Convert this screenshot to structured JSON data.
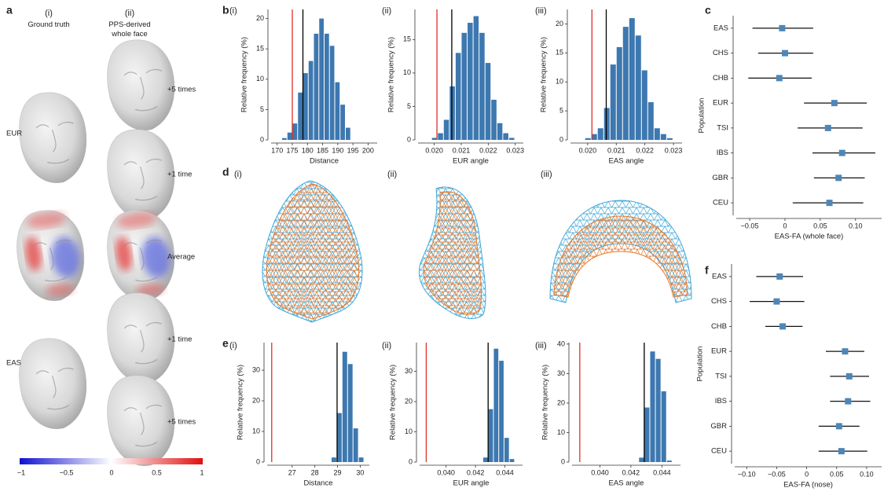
{
  "panel_letters": [
    "a",
    "b",
    "c",
    "d",
    "e",
    "f"
  ],
  "panel_a": {
    "columns": [
      {
        "label": "(i)",
        "title": "Ground truth"
      },
      {
        "label": "(ii)",
        "title": "PPS-derived whole face"
      }
    ],
    "row_labels": [
      "+5 times",
      "+1 time",
      "Average",
      "+1 time",
      "+5 times"
    ],
    "groups": [
      "EUR",
      "EAS"
    ],
    "colorbar_ticks": [
      "−1",
      "−0.5",
      "0",
      "0.5",
      "1"
    ]
  },
  "panel_d": {
    "labels": [
      "(i)",
      "(ii)",
      "(iii)"
    ]
  },
  "chart_data": [
    {
      "type": "histogram",
      "label": "(i)",
      "xlabel": "Distance",
      "ylabel": "Relative frequency (%)",
      "color": "#3d78b0",
      "bins": [
        171.5,
        173.25,
        175,
        176.75,
        178.5,
        180.25,
        182,
        183.75,
        185.5,
        187.25,
        189,
        190.75,
        192.5,
        194.25
      ],
      "values": [
        0.3,
        1.2,
        2.7,
        7.8,
        11,
        13,
        17.5,
        20,
        17.5,
        15.5,
        9.5,
        5.8,
        2
      ],
      "reference_lines": [
        {
          "value": 175,
          "color": "#e0302a"
        },
        {
          "value": 178.5,
          "color": "#000000"
        }
      ],
      "xlim": [
        168,
        203
      ],
      "xticks": [
        170,
        175,
        180,
        185,
        190,
        195,
        200
      ],
      "ylim": [
        0,
        21.5
      ],
      "yticks": [
        0,
        5,
        10,
        15,
        20
      ]
    },
    {
      "type": "histogram",
      "label": "(ii)",
      "xlabel": "EUR angle",
      "ylabel": "Relative frequency (%)",
      "color": "#3d78b0",
      "bins": [
        0.0199,
        0.02012,
        0.02034,
        0.02056,
        0.02078,
        0.021,
        0.02122,
        0.02144,
        0.02166,
        0.02188,
        0.0221,
        0.02232,
        0.02254,
        0.02276,
        0.02298
      ],
      "values": [
        0.3,
        1,
        3,
        8,
        13,
        16,
        17.5,
        18.5,
        16,
        11.5,
        6,
        2.5,
        1,
        0.3
      ],
      "reference_lines": [
        {
          "value": 0.0201,
          "color": "#e0302a"
        },
        {
          "value": 0.02065,
          "color": "#000000"
        }
      ],
      "xlim": [
        0.0194,
        0.0233
      ],
      "xticks": [
        {
          "value": 0.02,
          "label": "0.020"
        },
        0.021,
        0.022,
        0.023
      ],
      "ylim": [
        0,
        19.5
      ],
      "yticks": [
        0,
        5,
        10,
        15
      ]
    },
    {
      "type": "histogram",
      "label": "(iii)",
      "xlabel": "EAS angle",
      "ylabel": "Relative frequency (%)",
      "color": "#3d78b0",
      "bins": [
        0.0199,
        0.02012,
        0.02034,
        0.02056,
        0.02078,
        0.021,
        0.02122,
        0.02144,
        0.02166,
        0.02188,
        0.0221,
        0.02232,
        0.02254,
        0.02276,
        0.02298
      ],
      "values": [
        0.3,
        1,
        2,
        5.5,
        13,
        16,
        19.5,
        21,
        18,
        12,
        6.5,
        2,
        1,
        0.3
      ],
      "reference_lines": [
        {
          "value": 0.02015,
          "color": "#e0302a"
        },
        {
          "value": 0.02065,
          "color": "#000000"
        }
      ],
      "xlim": [
        0.0194,
        0.0233
      ],
      "xticks": [
        {
          "value": 0.02,
          "label": "0.020"
        },
        0.021,
        0.022,
        0.023
      ],
      "ylim": [
        0,
        22.5
      ],
      "yticks": [
        0,
        5,
        10,
        15,
        20
      ]
    },
    {
      "type": "forest",
      "xlabel": "EAS-FA (whole face)",
      "ylabel": "Population",
      "color": "#4f86b8",
      "categories": [
        "EAS",
        "CHS",
        "CHB",
        "EUR",
        "TSI",
        "IBS",
        "GBR",
        "CEU"
      ],
      "values": [
        -0.004,
        0,
        -0.008,
        0.07,
        0.061,
        0.081,
        0.076,
        0.063
      ],
      "lower": [
        -0.046,
        -0.038,
        -0.052,
        0.027,
        0.018,
        0.039,
        0.041,
        0.011
      ],
      "upper": [
        0.04,
        0.04,
        0.038,
        0.116,
        0.11,
        0.128,
        0.113,
        0.111
      ],
      "xlim": [
        -0.069,
        0.137
      ],
      "xticks": [
        {
          "value": -0.05,
          "label": "−0.05"
        },
        0,
        0.05,
        {
          "value": 0.1,
          "label": "0.10"
        }
      ]
    },
    {
      "type": "histogram",
      "label": "(i)",
      "xlabel": "Distance",
      "ylabel": "Relative frequency (%)",
      "color": "#3d78b0",
      "bins": [
        28.72,
        28.96,
        29.2,
        29.44,
        29.68,
        29.92,
        30.16
      ],
      "values": [
        1.5,
        16,
        36,
        32,
        11,
        1.5
      ],
      "reference_lines": [
        {
          "value": 26.1,
          "color": "#e0302a"
        },
        {
          "value": 28.98,
          "color": "#000000"
        }
      ],
      "xlim": [
        25.9,
        30.4
      ],
      "xticks": [
        27,
        28,
        29,
        30
      ],
      "ylim": [
        0,
        39
      ],
      "yticks": [
        0,
        10,
        20,
        30
      ]
    },
    {
      "type": "histogram",
      "label": "(ii)",
      "xlabel": "EUR angle",
      "ylabel": "Relative frequency (%)",
      "color": "#3d78b0",
      "bins": [
        0.0425,
        0.04286,
        0.04322,
        0.04358,
        0.04394,
        0.0443,
        0.04466
      ],
      "values": [
        1.5,
        17.5,
        37.5,
        33.5,
        8,
        1
      ],
      "reference_lines": [
        {
          "value": 0.03865,
          "color": "#e0302a"
        },
        {
          "value": 0.04286,
          "color": "#000000"
        }
      ],
      "xlim": [
        0.0382,
        0.0452
      ],
      "xticks": [
        {
          "value": 0.04,
          "label": "0.040"
        },
        0.042,
        0.044
      ],
      "ylim": [
        0,
        39.5
      ],
      "yticks": [
        0,
        10,
        20,
        30
      ]
    },
    {
      "type": "histogram",
      "label": "(iii)",
      "xlabel": "EAS angle",
      "ylabel": "Relative frequency (%)",
      "color": "#3d78b0",
      "bins": [
        0.0425,
        0.04286,
        0.04322,
        0.04358,
        0.04394,
        0.0443,
        0.04466
      ],
      "values": [
        1.5,
        18.5,
        37.5,
        35,
        24,
        0.5
      ],
      "reference_lines": [
        {
          "value": 0.0387,
          "color": "#e0302a"
        },
        {
          "value": 0.04286,
          "color": "#000000"
        }
      ],
      "xlim": [
        0.0382,
        0.0452
      ],
      "xticks": [
        {
          "value": 0.04,
          "label": "0.040"
        },
        0.042,
        0.044
      ],
      "ylim": [
        0,
        40.5
      ],
      "yticks": [
        0,
        10,
        20,
        30,
        40
      ]
    },
    {
      "type": "forest",
      "xlabel": "EAS-FA (nose)",
      "ylabel": "Population",
      "color": "#4f86b8",
      "categories": [
        "EAS",
        "CHS",
        "CHB",
        "EUR",
        "TSI",
        "IBS",
        "GBR",
        "CEU"
      ],
      "values": [
        -0.045,
        -0.05,
        -0.04,
        0.064,
        0.071,
        0.069,
        0.054,
        0.058
      ],
      "lower": [
        -0.084,
        -0.095,
        -0.069,
        0.032,
        0.039,
        0.039,
        0.02,
        0.02
      ],
      "upper": [
        -0.006,
        -0.004,
        -0.007,
        0.096,
        0.104,
        0.106,
        0.088,
        0.101
      ],
      "xlim": [
        -0.12,
        0.125
      ],
      "xticks": [
        {
          "value": -0.1,
          "label": "−0.10"
        },
        {
          "value": -0.05,
          "label": "−0.05"
        },
        0,
        0.05,
        {
          "value": 0.1,
          "label": "0.10"
        }
      ]
    }
  ]
}
